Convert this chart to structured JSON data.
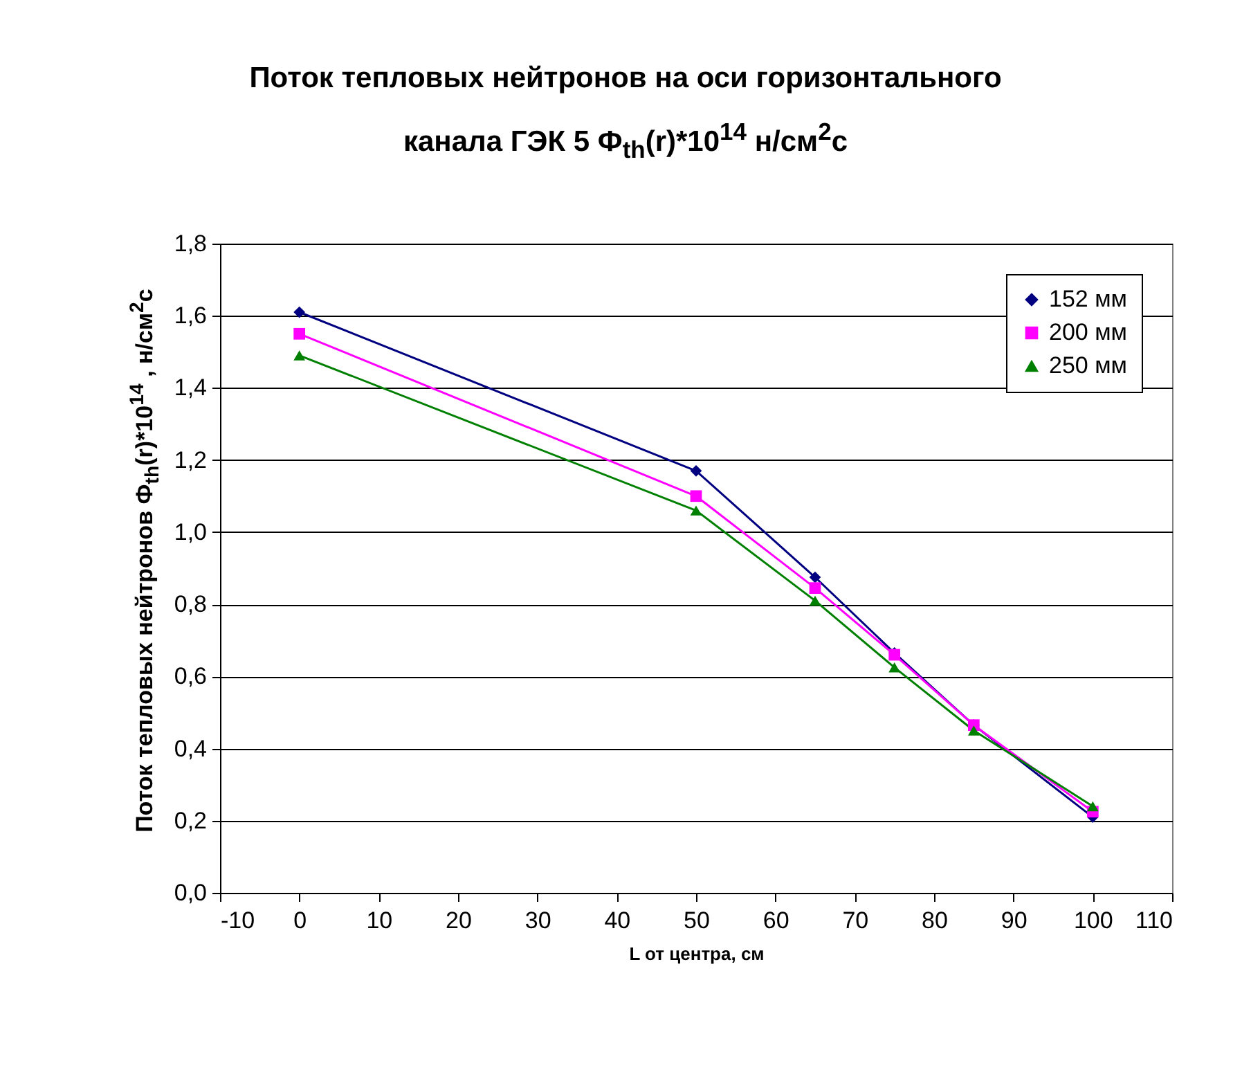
{
  "chart_data": {
    "type": "line",
    "title": "Поток тепловых нейтронов на оси горизонтального канала ГЭК 5 Ф$_{th}$(r)*10$^{14}$ н/см$^{2}$с",
    "xlabel": "L от центра, см",
    "ylabel": "Поток тепловых нейтронов Ф$_{th}$(r)*10$^{14}$ , н/см$^{2}$с",
    "x": [
      0,
      50,
      65,
      75,
      85,
      100
    ],
    "series": [
      {
        "name": "152 мм",
        "color": "#000080",
        "marker": "diamond",
        "values": [
          1.61,
          1.17,
          0.875,
          0.665,
          0.465,
          0.21
        ]
      },
      {
        "name": "200 мм",
        "color": "#ff00ff",
        "marker": "square",
        "values": [
          1.55,
          1.1,
          0.845,
          0.66,
          0.465,
          0.225
        ]
      },
      {
        "name": "250 мм",
        "color": "#008000",
        "marker": "triangle",
        "values": [
          1.49,
          1.06,
          0.81,
          0.625,
          0.45,
          0.24
        ]
      }
    ],
    "xlim": [
      -10,
      110
    ],
    "xticks": [
      -10,
      0,
      10,
      20,
      30,
      40,
      50,
      60,
      70,
      80,
      90,
      100,
      110
    ],
    "ylim": [
      0,
      1.8
    ],
    "yticks": [
      {
        "value": 0,
        "label": "0,0"
      },
      {
        "value": 0.2,
        "label": "0,2"
      },
      {
        "value": 0.4,
        "label": "0,4"
      },
      {
        "value": 0.6,
        "label": "0,6"
      },
      {
        "value": 0.8,
        "label": "0,8"
      },
      {
        "value": 1.0,
        "label": "1,0"
      },
      {
        "value": 1.2,
        "label": "1,2"
      },
      {
        "value": 1.4,
        "label": "1,4"
      },
      {
        "value": 1.6,
        "label": "1,6"
      },
      {
        "value": 1.8,
        "label": "1,8"
      }
    ],
    "grid": "y",
    "legend": "top right",
    "line_style": "solid"
  }
}
